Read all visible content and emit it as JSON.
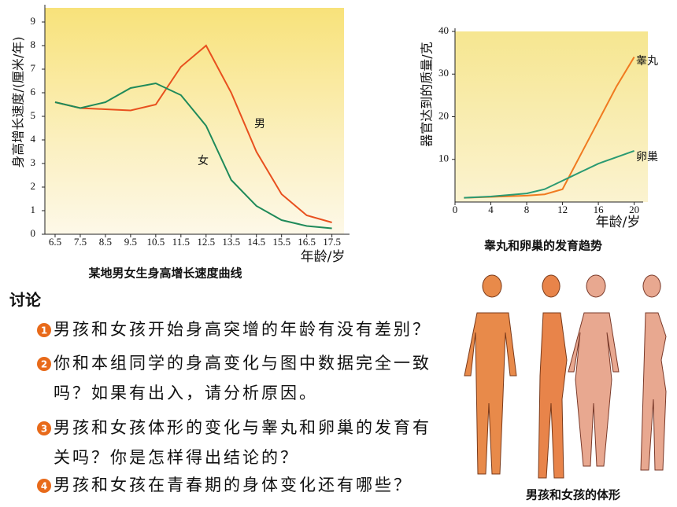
{
  "chart_data": [
    {
      "type": "line",
      "title": "某地男女生身高增长速度曲线",
      "y_label": "身高增长速度/(厘米/年)",
      "x_label": "年龄/岁",
      "x": [
        6.5,
        7.5,
        8.5,
        9.5,
        10.5,
        11.5,
        12.5,
        13.5,
        14.5,
        15.5,
        16.5,
        17.5
      ],
      "series": [
        {
          "name": "男",
          "color": "#e8501e",
          "values": [
            5.6,
            5.35,
            5.3,
            5.25,
            5.5,
            7.1,
            8.0,
            6.0,
            3.5,
            1.7,
            0.8,
            0.5
          ]
        },
        {
          "name": "女",
          "color": "#1f8a5a",
          "values": [
            5.6,
            5.35,
            5.6,
            6.2,
            6.4,
            5.9,
            4.6,
            2.3,
            1.2,
            0.6,
            0.35,
            0.25
          ]
        }
      ],
      "xlim": [
        6,
        18.2
      ],
      "ylim": [
        0,
        9.6
      ],
      "xticks": [
        6.5,
        7.5,
        8.5,
        9.5,
        10.5,
        11.5,
        12.5,
        13.5,
        14.5,
        15.5,
        16.5,
        17.5
      ],
      "yticks": [
        0,
        1,
        2,
        3,
        4,
        5,
        6,
        7,
        8,
        9
      ]
    },
    {
      "type": "line",
      "title": "睾丸和卵巢的发育趋势",
      "y_label": "器官达到的质量/克",
      "x_label": "年龄/岁",
      "x": [
        1,
        4,
        8,
        10,
        12,
        13,
        14,
        16,
        18,
        20
      ],
      "series": [
        {
          "name": "睾丸",
          "color": "#f07a20",
          "values": [
            1,
            1.2,
            1.5,
            1.8,
            3,
            7,
            11,
            19,
            27,
            34
          ]
        },
        {
          "name": "卵巢",
          "color": "#2a9a72",
          "values": [
            1,
            1.3,
            2,
            3,
            5,
            6,
            7,
            9,
            10.5,
            12
          ]
        }
      ],
      "xlim": [
        0,
        21
      ],
      "ylim": [
        0,
        40
      ],
      "xticks": [
        0,
        4,
        8,
        12,
        16,
        20
      ],
      "yticks": [
        10,
        20,
        30,
        40
      ]
    }
  ],
  "discussion": {
    "title": "讨论",
    "items": [
      {
        "number": "1",
        "lines": [
          "男孩和女孩开始身高突增的年龄有没有差别？"
        ]
      },
      {
        "number": "2",
        "lines": [
          "你和本组同学的身高变化与图中数据完全一致",
          "吗？如果有出入，请分析原因。"
        ]
      },
      {
        "number": "3",
        "lines": [
          "男孩和女孩体形的变化与睾丸和卵巢的发育有",
          "关吗？你是怎样得出结论的？"
        ]
      },
      {
        "number": "4",
        "lines": [
          "男孩和女孩在青春期的身体变化还有哪些？"
        ]
      }
    ]
  },
  "figure": {
    "caption": "男孩和女孩的体形"
  }
}
